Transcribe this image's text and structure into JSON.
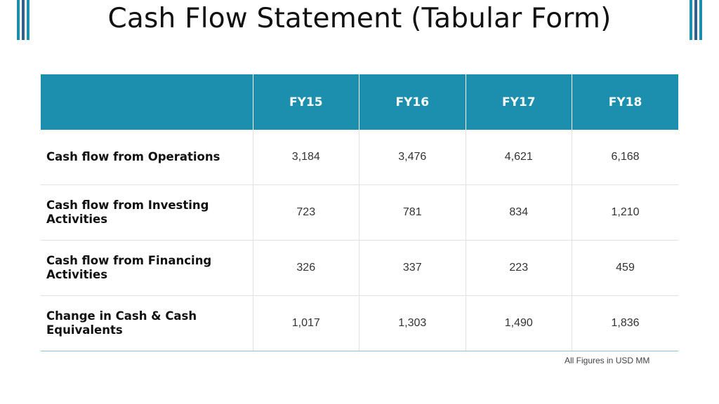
{
  "title": "Cash Flow Statement (Tabular Form)",
  "table": {
    "headers": [
      "",
      "FY15",
      "FY16",
      "FY17",
      "FY18"
    ],
    "rows": [
      {
        "label": "Cash flow from Operations",
        "values": [
          "3,184",
          "3,476",
          "4,621",
          "6,168"
        ]
      },
      {
        "label": "Cash flow from Investing Activities",
        "values": [
          "723",
          "781",
          "834",
          "1,210"
        ]
      },
      {
        "label": "Cash flow from Financing Activities",
        "values": [
          "326",
          "337",
          "223",
          "459"
        ]
      },
      {
        "label": "Change in Cash & Cash Equivalents",
        "values": [
          "1,017",
          "1,303",
          "1,490",
          "1,836"
        ]
      }
    ]
  },
  "footnote": "All Figures in USD MM",
  "colors": {
    "header_bg": "#1b8fad",
    "accent_blue": "#2e5f8e",
    "accent_teal": "#1d8fad"
  }
}
